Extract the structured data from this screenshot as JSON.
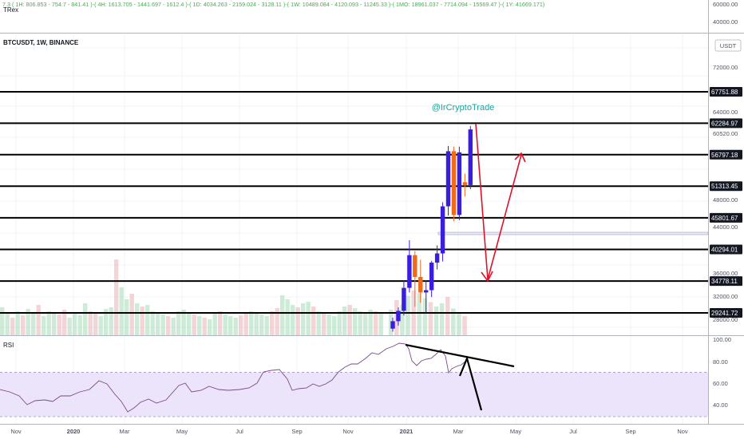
{
  "header": {
    "trex_title": "TRex",
    "trex_values": "7.3 ( 1H: 806.853 - 754.7 - 841.41 )-( 4H: 1613.705 - 1441.697 - 1612.4 )-( 1D: 4034.263 - 2159.024 - 3128.11 )-( 1W: 10489.084 - 4120.093 - 11245.33 )-( 1MO: 18961.037 - 7714.094 - 15569.47 )-( 1Y: 41669.171)",
    "symbol": "BTCUSDT, 1W, BINANCE",
    "watermark": "@IrCryptoTrade",
    "currency_label": "USDT",
    "rsi_label": "RSI"
  },
  "colors": {
    "bull": "#3a1ee0",
    "bear": "#f06a1a",
    "level_line": "#000000",
    "arrow": "#e0102a",
    "rsi_line": "#7a4a8a",
    "rsi_band": "#ece4fb",
    "watermark": "#1aa39a",
    "trex_text": "#3cb54a"
  },
  "chart_data": {
    "type": "candlestick",
    "top_axis_ticks": [
      "60000.00",
      "40000.00"
    ],
    "price_axis_ticks": [
      "72000.00",
      "64000.00",
      "60520.00",
      "48000.00",
      "44000.00",
      "36000.00",
      "32000.00",
      "28000.00"
    ],
    "level_labels": [
      "67751.88",
      "62284.97",
      "56797.18",
      "51313.45",
      "45801.67",
      "40294.01",
      "34778.11",
      "29241.72"
    ],
    "levels": [
      67751.88,
      62284.97,
      56797.18,
      51313.45,
      45801.67,
      40294.01,
      34778.11,
      29241.72
    ],
    "x_ticks": [
      "Nov",
      "2020",
      "Mar",
      "May",
      "Jul",
      "Sep",
      "Nov",
      "2021",
      "Mar",
      "May",
      "Jul",
      "Sep",
      "Nov"
    ],
    "candles": [
      {
        "o": 26500,
        "h": 28400,
        "l": 26000,
        "c": 27800
      },
      {
        "o": 27800,
        "h": 30200,
        "l": 27000,
        "c": 29600
      },
      {
        "o": 29600,
        "h": 34800,
        "l": 28800,
        "c": 33600
      },
      {
        "o": 33600,
        "h": 41900,
        "l": 32800,
        "c": 39300
      },
      {
        "o": 39300,
        "h": 40000,
        "l": 30300,
        "c": 35500
      },
      {
        "o": 35500,
        "h": 38500,
        "l": 31000,
        "c": 32800
      },
      {
        "o": 32800,
        "h": 34900,
        "l": 29300,
        "c": 33200
      },
      {
        "o": 33200,
        "h": 38300,
        "l": 32000,
        "c": 38000
      },
      {
        "o": 38000,
        "h": 41000,
        "l": 36800,
        "c": 39600
      },
      {
        "o": 39600,
        "h": 48500,
        "l": 38200,
        "c": 47800
      },
      {
        "o": 47800,
        "h": 58300,
        "l": 46200,
        "c": 57400
      },
      {
        "o": 57400,
        "h": 58200,
        "l": 45200,
        "c": 46300
      },
      {
        "o": 46300,
        "h": 58200,
        "l": 45400,
        "c": 57200
      },
      {
        "o": 52000,
        "h": 53500,
        "l": 49500,
        "c": 51500
      },
      {
        "o": 51500,
        "h": 61800,
        "l": 50800,
        "c": 61200
      }
    ],
    "rsi_axis_ticks": [
      "100.00",
      "80.00",
      "60.00",
      "40.00"
    ],
    "rsi_band": [
      30,
      70
    ],
    "rsi_ylim": [
      25,
      102
    ]
  }
}
